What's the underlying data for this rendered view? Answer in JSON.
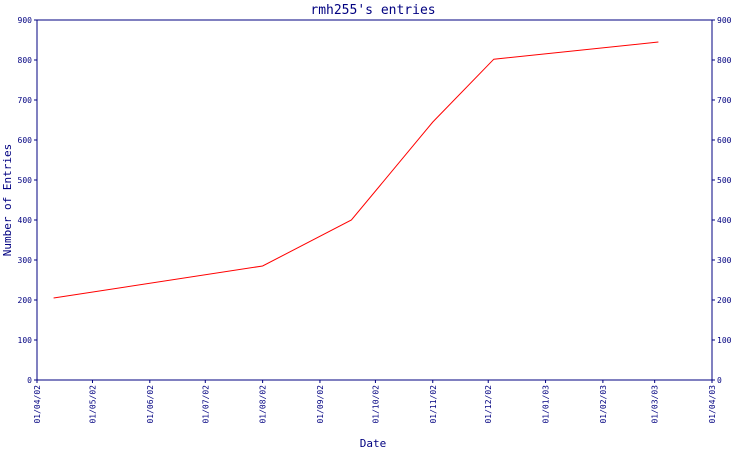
{
  "chart_data": {
    "type": "line",
    "title": "rmh255's entries",
    "xlabel": "Date",
    "ylabel": "Number of Entries",
    "ylim": [
      0,
      900
    ],
    "yticks": [
      0,
      100,
      200,
      300,
      400,
      500,
      600,
      700,
      800,
      900
    ],
    "xticks": [
      "01/04/02",
      "01/05/02",
      "01/06/02",
      "01/07/02",
      "01/08/02",
      "01/09/02",
      "01/10/02",
      "01/11/02",
      "01/12/02",
      "01/01/03",
      "01/02/03",
      "01/03/03",
      "01/04/03"
    ],
    "xlim": [
      "2002-04-01",
      "2003-04-01"
    ],
    "grid": false,
    "legend": "none",
    "series": [
      {
        "color": "#ff0000",
        "x": [
          "2002-04-10",
          "2002-08-01",
          "2002-09-18",
          "2002-11-01",
          "2002-12-04",
          "2003-03-03"
        ],
        "y": [
          205,
          285,
          400,
          645,
          802,
          845
        ]
      }
    ],
    "colors": {
      "axis": "#000080",
      "line": "#ff0000"
    }
  }
}
